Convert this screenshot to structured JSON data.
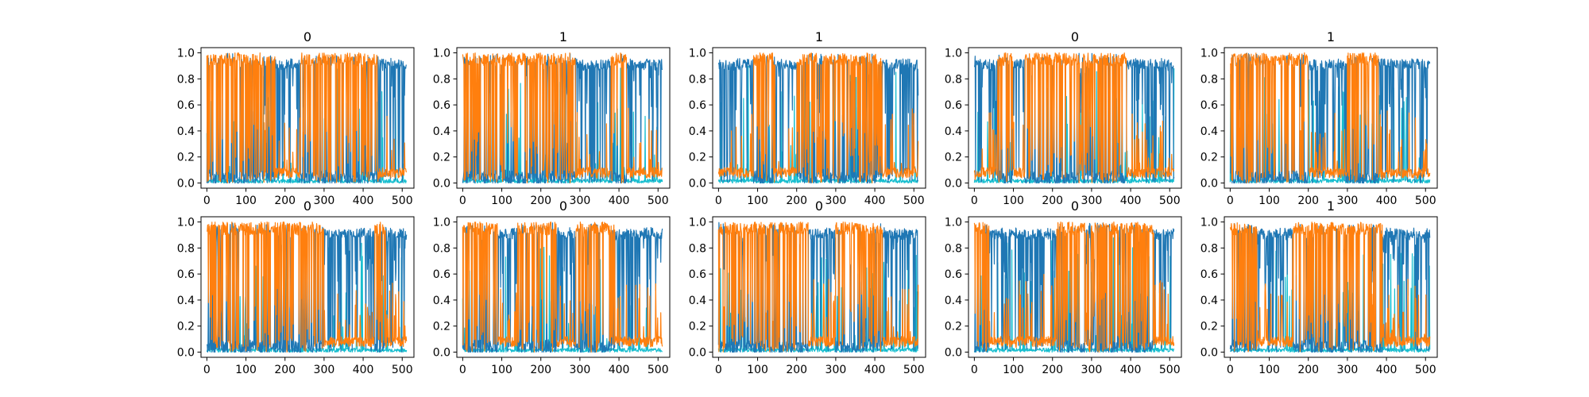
{
  "chart_data": [
    {
      "type": "line",
      "title": "0",
      "xlim": [
        -15,
        530
      ],
      "ylim": [
        -0.04,
        1.04
      ],
      "x_ticks": [
        0,
        100,
        200,
        300,
        400,
        500
      ],
      "y_ticks": [
        "0.0",
        "0.2",
        "0.4",
        "0.6",
        "0.8",
        "1.0"
      ],
      "series": [
        {
          "color": "#1f77b4",
          "values": []
        },
        {
          "color": "#ff7f0e",
          "values": []
        },
        {
          "color": "#17becf",
          "values": []
        }
      ],
      "dominant_segments": [
        {
          "x": [
            0,
            175
          ],
          "series": 1
        },
        {
          "x": [
            175,
            240
          ],
          "series": 0
        },
        {
          "x": [
            240,
            440
          ],
          "series": 1
        },
        {
          "x": [
            440,
            512
          ],
          "series": 0
        }
      ]
    },
    {
      "type": "line",
      "title": "1",
      "xlim": [
        -15,
        530
      ],
      "ylim": [
        -0.04,
        1.04
      ],
      "x_ticks": [
        0,
        100,
        200,
        300,
        400,
        500
      ],
      "y_ticks": [
        "0.0",
        "0.2",
        "0.4",
        "0.6",
        "0.8",
        "1.0"
      ],
      "series": [
        {
          "color": "#1f77b4",
          "values": []
        },
        {
          "color": "#ff7f0e",
          "values": []
        },
        {
          "color": "#17becf",
          "values": []
        }
      ],
      "dominant_segments": [
        {
          "x": [
            0,
            290
          ],
          "series": 1
        },
        {
          "x": [
            290,
            380
          ],
          "series": 0
        },
        {
          "x": [
            380,
            420
          ],
          "series": 1
        },
        {
          "x": [
            420,
            512
          ],
          "series": 0
        }
      ]
    },
    {
      "type": "line",
      "title": "1",
      "xlim": [
        -15,
        530
      ],
      "ylim": [
        -0.04,
        1.04
      ],
      "x_ticks": [
        0,
        100,
        200,
        300,
        400,
        500
      ],
      "y_ticks": [
        "0.0",
        "0.2",
        "0.4",
        "0.6",
        "0.8",
        "1.0"
      ],
      "series": [
        {
          "color": "#1f77b4",
          "values": []
        },
        {
          "color": "#ff7f0e",
          "values": []
        },
        {
          "color": "#17becf",
          "values": []
        }
      ],
      "dominant_segments": [
        {
          "x": [
            0,
            90
          ],
          "series": 0
        },
        {
          "x": [
            90,
            145
          ],
          "series": 1
        },
        {
          "x": [
            145,
            200
          ],
          "series": 0
        },
        {
          "x": [
            200,
            420
          ],
          "series": 1
        },
        {
          "x": [
            420,
            512
          ],
          "series": 0
        }
      ]
    },
    {
      "type": "line",
      "title": "0",
      "xlim": [
        -15,
        530
      ],
      "ylim": [
        -0.04,
        1.04
      ],
      "x_ticks": [
        0,
        100,
        200,
        300,
        400,
        500
      ],
      "y_ticks": [
        "0.0",
        "0.2",
        "0.4",
        "0.6",
        "0.8",
        "1.0"
      ],
      "series": [
        {
          "color": "#1f77b4",
          "values": []
        },
        {
          "color": "#ff7f0e",
          "values": []
        },
        {
          "color": "#17becf",
          "values": []
        }
      ],
      "dominant_segments": [
        {
          "x": [
            0,
            60
          ],
          "series": 0
        },
        {
          "x": [
            60,
            100
          ],
          "series": 1
        },
        {
          "x": [
            100,
            130
          ],
          "series": 0
        },
        {
          "x": [
            130,
            390
          ],
          "series": 1
        },
        {
          "x": [
            390,
            512
          ],
          "series": 0
        }
      ]
    },
    {
      "type": "line",
      "title": "1",
      "xlim": [
        -15,
        530
      ],
      "ylim": [
        -0.04,
        1.04
      ],
      "x_ticks": [
        0,
        100,
        200,
        300,
        400,
        500
      ],
      "y_ticks": [
        "0.0",
        "0.2",
        "0.4",
        "0.6",
        "0.8",
        "1.0"
      ],
      "series": [
        {
          "color": "#1f77b4",
          "values": []
        },
        {
          "color": "#ff7f0e",
          "values": []
        },
        {
          "color": "#17becf",
          "values": []
        }
      ],
      "dominant_segments": [
        {
          "x": [
            0,
            200
          ],
          "series": 1
        },
        {
          "x": [
            200,
            300
          ],
          "series": 0
        },
        {
          "x": [
            300,
            380
          ],
          "series": 1
        },
        {
          "x": [
            380,
            512
          ],
          "series": 0
        }
      ]
    },
    {
      "type": "line",
      "title": "0",
      "xlim": [
        -15,
        530
      ],
      "ylim": [
        -0.04,
        1.04
      ],
      "x_ticks": [
        0,
        100,
        200,
        300,
        400,
        500
      ],
      "y_ticks": [
        "0.0",
        "0.2",
        "0.4",
        "0.6",
        "0.8",
        "1.0"
      ],
      "series": [
        {
          "color": "#1f77b4",
          "values": []
        },
        {
          "color": "#ff7f0e",
          "values": []
        },
        {
          "color": "#17becf",
          "values": []
        }
      ],
      "dominant_segments": [
        {
          "x": [
            0,
            300
          ],
          "series": 1
        },
        {
          "x": [
            300,
            430
          ],
          "series": 0
        },
        {
          "x": [
            430,
            460
          ],
          "series": 1
        },
        {
          "x": [
            460,
            512
          ],
          "series": 0
        }
      ]
    },
    {
      "type": "line",
      "title": "0",
      "xlim": [
        -15,
        530
      ],
      "ylim": [
        -0.04,
        1.04
      ],
      "x_ticks": [
        0,
        100,
        200,
        300,
        400,
        500
      ],
      "y_ticks": [
        "0.0",
        "0.2",
        "0.4",
        "0.6",
        "0.8",
        "1.0"
      ],
      "series": [
        {
          "color": "#1f77b4",
          "values": []
        },
        {
          "color": "#ff7f0e",
          "values": []
        },
        {
          "color": "#17becf",
          "values": []
        }
      ],
      "dominant_segments": [
        {
          "x": [
            0,
            90
          ],
          "series": 1
        },
        {
          "x": [
            90,
            140
          ],
          "series": 0
        },
        {
          "x": [
            140,
            240
          ],
          "series": 1
        },
        {
          "x": [
            240,
            290
          ],
          "series": 0
        },
        {
          "x": [
            290,
            390
          ],
          "series": 1
        },
        {
          "x": [
            390,
            512
          ],
          "series": 0
        }
      ]
    },
    {
      "type": "line",
      "title": "0",
      "xlim": [
        -15,
        530
      ],
      "ylim": [
        -0.04,
        1.04
      ],
      "x_ticks": [
        0,
        100,
        200,
        300,
        400,
        500
      ],
      "y_ticks": [
        "0.0",
        "0.2",
        "0.4",
        "0.6",
        "0.8",
        "1.0"
      ],
      "series": [
        {
          "color": "#1f77b4",
          "values": []
        },
        {
          "color": "#ff7f0e",
          "values": []
        },
        {
          "color": "#17becf",
          "values": []
        }
      ],
      "dominant_segments": [
        {
          "x": [
            0,
            230
          ],
          "series": 1
        },
        {
          "x": [
            230,
            300
          ],
          "series": 0
        },
        {
          "x": [
            300,
            420
          ],
          "series": 1
        },
        {
          "x": [
            420,
            512
          ],
          "series": 0
        }
      ]
    },
    {
      "type": "line",
      "title": "0",
      "xlim": [
        -15,
        530
      ],
      "ylim": [
        -0.04,
        1.04
      ],
      "x_ticks": [
        0,
        100,
        200,
        300,
        400,
        500
      ],
      "y_ticks": [
        "0.0",
        "0.2",
        "0.4",
        "0.6",
        "0.8",
        "1.0"
      ],
      "series": [
        {
          "color": "#1f77b4",
          "values": []
        },
        {
          "color": "#ff7f0e",
          "values": []
        },
        {
          "color": "#17becf",
          "values": []
        }
      ],
      "dominant_segments": [
        {
          "x": [
            0,
            40
          ],
          "series": 1
        },
        {
          "x": [
            40,
            210
          ],
          "series": 0
        },
        {
          "x": [
            210,
            460
          ],
          "series": 1
        },
        {
          "x": [
            460,
            512
          ],
          "series": 0
        }
      ]
    },
    {
      "type": "line",
      "title": "1",
      "xlim": [
        -15,
        530
      ],
      "ylim": [
        -0.04,
        1.04
      ],
      "x_ticks": [
        0,
        100,
        200,
        300,
        400,
        500
      ],
      "y_ticks": [
        "0.0",
        "0.2",
        "0.4",
        "0.6",
        "0.8",
        "1.0"
      ],
      "series": [
        {
          "color": "#1f77b4",
          "values": []
        },
        {
          "color": "#ff7f0e",
          "values": []
        },
        {
          "color": "#17becf",
          "values": []
        }
      ],
      "dominant_segments": [
        {
          "x": [
            0,
            70
          ],
          "series": 1
        },
        {
          "x": [
            70,
            160
          ],
          "series": 0
        },
        {
          "x": [
            160,
            390
          ],
          "series": 1
        },
        {
          "x": [
            390,
            512
          ],
          "series": 0
        }
      ]
    }
  ]
}
